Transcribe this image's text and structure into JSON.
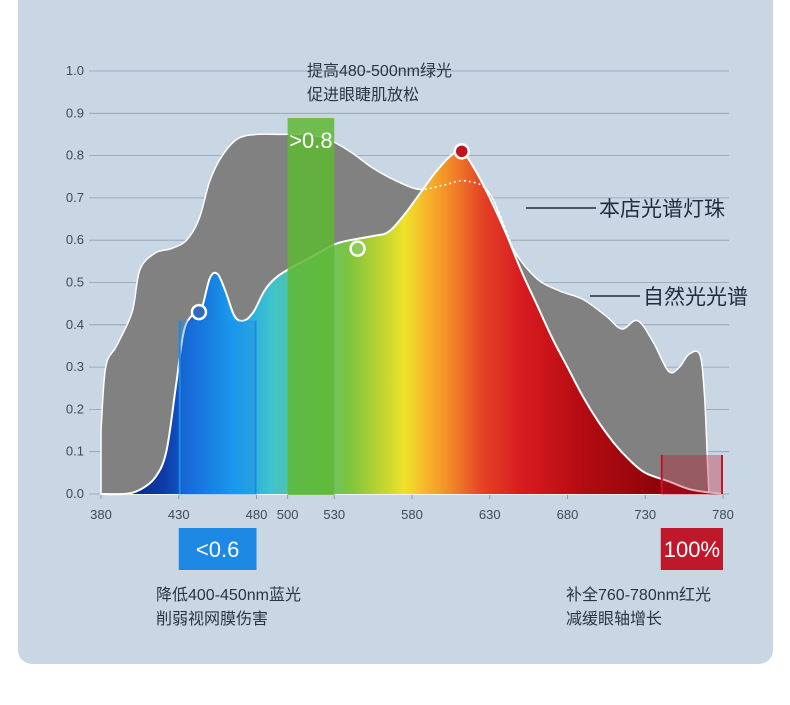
{
  "chart_data": {
    "type": "area",
    "xlim": [
      380,
      780
    ],
    "ylim": [
      0,
      1.0
    ],
    "x_ticks": [
      "380",
      "430",
      "480",
      "500",
      "530",
      "580",
      "630",
      "680",
      "730",
      "780"
    ],
    "y_ticks": [
      "0.0",
      "0.1",
      "0.2",
      "0.3",
      "0.4",
      "0.5",
      "0.6",
      "0.7",
      "0.8",
      "0.9",
      "1.0"
    ],
    "grid": true,
    "series": [
      {
        "name": "自然光光谱",
        "color": "#808080",
        "points": [
          [
            380,
            0.15
          ],
          [
            383,
            0.3
          ],
          [
            390,
            0.35
          ],
          [
            400,
            0.43
          ],
          [
            405,
            0.53
          ],
          [
            415,
            0.57
          ],
          [
            425,
            0.58
          ],
          [
            435,
            0.6
          ],
          [
            443,
            0.65
          ],
          [
            450,
            0.74
          ],
          [
            458,
            0.8
          ],
          [
            468,
            0.84
          ],
          [
            480,
            0.85
          ],
          [
            495,
            0.85
          ],
          [
            510,
            0.85
          ],
          [
            525,
            0.84
          ],
          [
            540,
            0.81
          ],
          [
            555,
            0.77
          ],
          [
            570,
            0.74
          ],
          [
            585,
            0.72
          ],
          [
            600,
            0.73
          ],
          [
            615,
            0.74
          ],
          [
            630,
            0.71
          ],
          [
            645,
            0.58
          ],
          [
            660,
            0.51
          ],
          [
            675,
            0.48
          ],
          [
            690,
            0.46
          ],
          [
            705,
            0.42
          ],
          [
            715,
            0.39
          ],
          [
            725,
            0.41
          ],
          [
            735,
            0.36
          ],
          [
            745,
            0.29
          ],
          [
            752,
            0.3
          ],
          [
            758,
            0.33
          ],
          [
            765,
            0.33
          ],
          [
            768,
            0.24
          ],
          [
            770,
            0.08
          ],
          [
            771,
            0.0
          ]
        ]
      },
      {
        "name": "本店光谱灯珠",
        "color": "#ffffff",
        "points": [
          [
            380,
            0.0
          ],
          [
            395,
            0.0
          ],
          [
            405,
            0.01
          ],
          [
            415,
            0.04
          ],
          [
            422,
            0.1
          ],
          [
            428,
            0.25
          ],
          [
            433,
            0.38
          ],
          [
            438,
            0.42
          ],
          [
            444,
            0.43
          ],
          [
            450,
            0.51
          ],
          [
            455,
            0.52
          ],
          [
            460,
            0.48
          ],
          [
            466,
            0.42
          ],
          [
            472,
            0.41
          ],
          [
            478,
            0.43
          ],
          [
            485,
            0.48
          ],
          [
            492,
            0.51
          ],
          [
            500,
            0.53
          ],
          [
            510,
            0.55
          ],
          [
            520,
            0.57
          ],
          [
            530,
            0.59
          ],
          [
            540,
            0.6
          ],
          [
            555,
            0.61
          ],
          [
            565,
            0.62
          ],
          [
            575,
            0.66
          ],
          [
            585,
            0.71
          ],
          [
            595,
            0.76
          ],
          [
            605,
            0.8
          ],
          [
            612,
            0.81
          ],
          [
            620,
            0.77
          ],
          [
            630,
            0.7
          ],
          [
            640,
            0.62
          ],
          [
            650,
            0.53
          ],
          [
            660,
            0.45
          ],
          [
            670,
            0.37
          ],
          [
            680,
            0.3
          ],
          [
            690,
            0.23
          ],
          [
            700,
            0.17
          ],
          [
            710,
            0.12
          ],
          [
            720,
            0.08
          ],
          [
            730,
            0.05
          ],
          [
            745,
            0.03
          ],
          [
            760,
            0.01
          ],
          [
            780,
            0.0
          ]
        ]
      }
    ],
    "highlights": [
      {
        "label": "<0.6",
        "range": [
          430,
          480
        ],
        "color": "#1e88e5"
      },
      {
        "label": ">0.8",
        "range": [
          500,
          530
        ],
        "color": "#5fb834"
      },
      {
        "label": "100%",
        "range": [
          740,
          780
        ],
        "color": "#c0182b"
      }
    ],
    "markers": [
      {
        "x": 443,
        "y": 0.43,
        "color": "#2f6cc0"
      },
      {
        "x": 545,
        "y": 0.58,
        "color": "#8fcb5c"
      },
      {
        "x": 612,
        "y": 0.81,
        "color": "#c1121f"
      }
    ],
    "legend": [
      {
        "label": "本店光谱灯珠"
      },
      {
        "label": "自然光光谱"
      }
    ],
    "annotations": [
      {
        "lines": [
          "提高480-500nm绿光",
          "促进眼睫肌放松"
        ]
      },
      {
        "lines": [
          "降低400-450nm蓝光",
          "削弱视网膜伤害"
        ]
      },
      {
        "lines": [
          "补全760-780nm红光",
          "减缓眼轴增长"
        ]
      }
    ]
  }
}
